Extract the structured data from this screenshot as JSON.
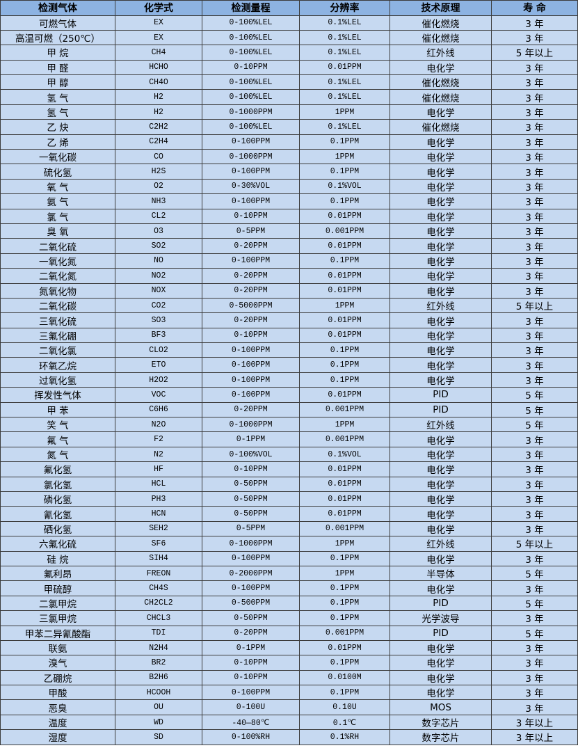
{
  "table": {
    "headers": [
      "检测气体",
      "化学式",
      "检测量程",
      "分辨率",
      "技术原理",
      "寿 命"
    ],
    "rows": [
      [
        "可燃气体",
        "EX",
        "0-100%LEL",
        "0.1%LEL",
        "催化燃烧",
        "3 年"
      ],
      [
        "高温可燃（250℃）",
        "EX",
        "0-100%LEL",
        "0.1%LEL",
        "催化燃烧",
        "3 年"
      ],
      [
        "甲 烷",
        "CH4",
        "0-100%LEL",
        "0.1%LEL",
        "红外线",
        "5 年以上"
      ],
      [
        "甲 醛",
        "HCHO",
        "0-10PPM",
        "0.01PPM",
        "电化学",
        "3 年"
      ],
      [
        "甲 醇",
        "CH4O",
        "0-100%LEL",
        "0.1%LEL",
        "催化燃烧",
        "3 年"
      ],
      [
        "氢 气",
        "H2",
        "0-100%LEL",
        "0.1%LEL",
        "催化燃烧",
        "3 年"
      ],
      [
        "氢 气",
        "H2",
        "0-1000PPM",
        "1PPM",
        "电化学",
        "3 年"
      ],
      [
        "乙 炔",
        "C2H2",
        "0-100%LEL",
        "0.1%LEL",
        "催化燃烧",
        "3 年"
      ],
      [
        "乙 烯",
        "C2H4",
        "0-100PPM",
        "0.1PPM",
        "电化学",
        "3 年"
      ],
      [
        "一氧化碳",
        "CO",
        "0-1000PPM",
        "1PPM",
        "电化学",
        "3 年"
      ],
      [
        "硫化氢",
        "H2S",
        "0-100PPM",
        "0.1PPM",
        "电化学",
        "3 年"
      ],
      [
        "氧 气",
        "O2",
        "0-30%VOL",
        "0.1%VOL",
        "电化学",
        "3 年"
      ],
      [
        "氨 气",
        "NH3",
        "0-100PPM",
        "0.1PPM",
        "电化学",
        "3 年"
      ],
      [
        "氯 气",
        "CL2",
        "0-10PPM",
        "0.01PPM",
        "电化学",
        "3 年"
      ],
      [
        "臭 氧",
        "O3",
        "0-5PPM",
        "0.001PPM",
        "电化学",
        "3 年"
      ],
      [
        "二氧化硫",
        "SO2",
        "0-20PPM",
        "0.01PPM",
        "电化学",
        "3 年"
      ],
      [
        "一氧化氮",
        "NO",
        "0-100PPM",
        "0.1PPM",
        "电化学",
        "3 年"
      ],
      [
        "二氧化氮",
        "NO2",
        "0-20PPM",
        "0.01PPM",
        "电化学",
        "3 年"
      ],
      [
        "氮氧化物",
        "NOX",
        "0-20PPM",
        "0.01PPM",
        "电化学",
        "3 年"
      ],
      [
        "二氧化碳",
        "CO2",
        "0-5000PPM",
        "1PPM",
        "红外线",
        "5 年以上"
      ],
      [
        "三氧化硫",
        "SO3",
        "0-20PPM",
        "0.01PPM",
        "电化学",
        "3 年"
      ],
      [
        "三氟化硼",
        "BF3",
        "0-10PPM",
        "0.01PPM",
        "电化学",
        "3 年"
      ],
      [
        "二氧化氯",
        "CLO2",
        "0-100PPM",
        "0.1PPM",
        "电化学",
        "3 年"
      ],
      [
        "环氧乙烷",
        "ETO",
        "0-100PPM",
        "0.1PPM",
        "电化学",
        "3 年"
      ],
      [
        "过氧化氢",
        "H2O2",
        "0-100PPM",
        "0.1PPM",
        "电化学",
        "3 年"
      ],
      [
        "挥发性气体",
        "VOC",
        "0-100PPM",
        "0.01PPM",
        "PID",
        "5 年"
      ],
      [
        "甲 苯",
        "C6H6",
        "0-20PPM",
        "0.001PPM",
        "PID",
        "5 年"
      ],
      [
        "笑 气",
        "N2O",
        "0-1000PPM",
        "1PPM",
        "红外线",
        "5 年"
      ],
      [
        "氟 气",
        "F2",
        "0-1PPM",
        "0.001PPM",
        "电化学",
        "3 年"
      ],
      [
        "氮 气",
        "N2",
        "0-100%VOL",
        "0.1%VOL",
        "电化学",
        "3 年"
      ],
      [
        "氟化氢",
        "HF",
        "0-10PPM",
        "0.01PPM",
        "电化学",
        "3 年"
      ],
      [
        "氯化氢",
        "HCL",
        "0-50PPM",
        "0.01PPM",
        "电化学",
        "3 年"
      ],
      [
        "磷化氢",
        "PH3",
        "0-50PPM",
        "0.01PPM",
        "电化学",
        "3 年"
      ],
      [
        "氰化氢",
        "HCN",
        "0-50PPM",
        "0.01PPM",
        "电化学",
        "3 年"
      ],
      [
        "硒化氢",
        "SEH2",
        "0-5PPM",
        "0.001PPM",
        "电化学",
        "3 年"
      ],
      [
        "六氟化硫",
        "SF6",
        "0-1000PPM",
        "1PPM",
        "红外线",
        "5 年以上"
      ],
      [
        "硅 烷",
        "SIH4",
        "0-100PPM",
        "0.1PPM",
        "电化学",
        "3 年"
      ],
      [
        "氟利昂",
        "FREON",
        "0-2000PPM",
        "1PPM",
        "半导体",
        "5 年"
      ],
      [
        "甲硫醇",
        "CH4S",
        "0-100PPM",
        "0.1PPM",
        "电化学",
        "3 年"
      ],
      [
        "二氯甲烷",
        "CH2CL2",
        "0-500PPM",
        "0.1PPM",
        "PID",
        "5 年"
      ],
      [
        "三氯甲烷",
        "CHCL3",
        "0-50PPM",
        "0.1PPM",
        "光学波导",
        "3 年"
      ],
      [
        "甲苯二异氰酸酯",
        "TDI",
        "0-20PPM",
        "0.001PPM",
        "PID",
        "5 年"
      ],
      [
        "联氨",
        "N2H4",
        "0-1PPM",
        "0.01PPM",
        "电化学",
        "3 年"
      ],
      [
        "溴气",
        "BR2",
        "0-10PPM",
        "0.1PPM",
        "电化学",
        "3 年"
      ],
      [
        "乙硼烷",
        "B2H6",
        "0-10PPM",
        "0.0100M",
        "电化学",
        "3 年"
      ],
      [
        "甲酸",
        "HCOOH",
        "0-100PPM",
        "0.1PPM",
        "电化学",
        "3 年"
      ],
      [
        "恶臭",
        "OU",
        "0-100U",
        "0.10U",
        "MOS",
        "3 年"
      ],
      [
        "温度",
        "WD",
        "-40—80℃",
        "0.1℃",
        "数字芯片",
        "3 年以上"
      ],
      [
        "湿度",
        "SD",
        "0-100%RH",
        "0.1%RH",
        "数字芯片",
        "3 年以上"
      ]
    ]
  },
  "colors": {
    "header_bg": "#8db3e2",
    "row_bg": "#c6d9f1",
    "border": "#3b3b3b"
  }
}
